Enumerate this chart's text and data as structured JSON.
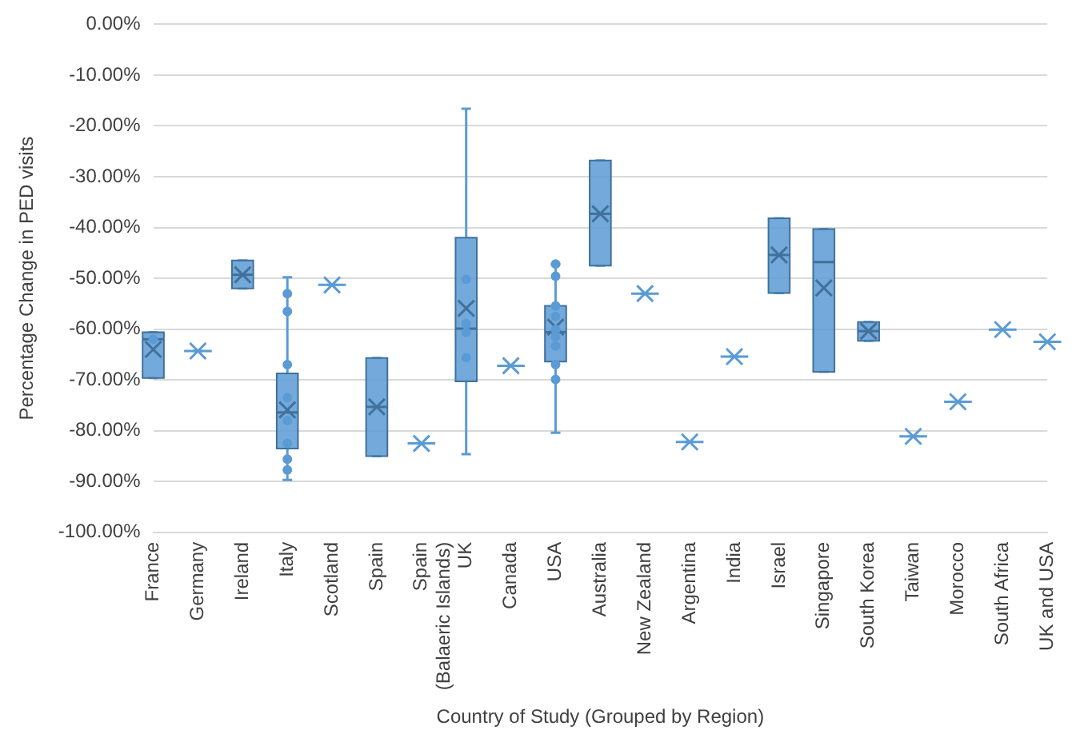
{
  "chart_data": {
    "type": "box",
    "xlabel": "Country of Study (Grouped by Region)",
    "ylabel": "Percentage Change in PED visits",
    "categories": [
      "France",
      "Germany",
      "Ireland",
      "Italy",
      "Scotland",
      "Spain",
      "Spain (Balaeric Islands)",
      "UK",
      "Canada",
      "USA",
      "Australia",
      "New Zealand",
      "Argentina",
      "India",
      "Israel",
      "Singapore",
      "South Korea",
      "Taiwan",
      "Morocco",
      "South Africa",
      "UK and USA"
    ],
    "ylim": [
      -100,
      0
    ],
    "yticks": [
      {
        "value": 0,
        "label": "0.00%"
      },
      {
        "value": -10,
        "label": "-10.00%"
      },
      {
        "value": -20,
        "label": "-20.00%"
      },
      {
        "value": -30,
        "label": "-30.00%"
      },
      {
        "value": -40,
        "label": "-40.00%"
      },
      {
        "value": -50,
        "label": "-50.00%"
      },
      {
        "value": -60,
        "label": "-60.00%"
      },
      {
        "value": -70,
        "label": "-70.00%"
      },
      {
        "value": -80,
        "label": "-80.00%"
      },
      {
        "value": -90,
        "label": "-90.00%"
      },
      {
        "value": -100,
        "label": "-100.00%"
      }
    ],
    "grid": "y",
    "legend": false,
    "series": [
      {
        "type": "box",
        "color": "#5b9bd5",
        "boxes": [
          {
            "low": -69.6,
            "q1": -69.6,
            "median": -62,
            "q3": -60.6,
            "high": -60.6,
            "mean": -64
          },
          {
            "low": -64.3,
            "q1": -64.3,
            "median": -64.3,
            "q3": -64.3,
            "high": -64.3,
            "mean": -64.3
          },
          {
            "low": -52,
            "q1": -52,
            "median": -49.3,
            "q3": -46.5,
            "high": -46.5,
            "mean": -49.3
          },
          {
            "low": -89.7,
            "q1": -83.5,
            "median": -76.4,
            "q3": -68.7,
            "high": -49.8,
            "mean": -75.9
          },
          {
            "low": -51.3,
            "q1": -51.3,
            "median": -51.3,
            "q3": -51.3,
            "high": -51.3,
            "mean": -51.3
          },
          {
            "low": -85,
            "q1": -85,
            "median": -75.3,
            "q3": -65.7,
            "high": -65.7,
            "mean": -75.3
          },
          {
            "low": -82.5,
            "q1": -82.5,
            "median": -82.5,
            "q3": -82.5,
            "high": -82.5,
            "mean": -82.5
          },
          {
            "low": -84.6,
            "q1": -70.3,
            "median": -59.9,
            "q3": -42,
            "high": -16.6,
            "mean": -55.9
          },
          {
            "low": -67.2,
            "q1": -67.2,
            "median": -67.2,
            "q3": -67.2,
            "high": -67.2,
            "mean": -67.2
          },
          {
            "low": -80.4,
            "q1": -66.4,
            "median": -60.6,
            "q3": -55.4,
            "high": -47.2,
            "mean": -59.6
          },
          {
            "low": -47.5,
            "q1": -47.5,
            "median": -37.3,
            "q3": -26.8,
            "high": -26.8,
            "mean": -37.3
          },
          {
            "low": -53,
            "q1": -53,
            "median": -53,
            "q3": -53,
            "high": -53,
            "mean": -53
          },
          {
            "low": -82.2,
            "q1": -82.2,
            "median": -82.2,
            "q3": -82.2,
            "high": -82.2,
            "mean": -82.2
          },
          {
            "low": -65.4,
            "q1": -65.4,
            "median": -65.4,
            "q3": -65.4,
            "high": -65.4,
            "mean": -65.4
          },
          {
            "low": -52.9,
            "q1": -52.9,
            "median": -45.4,
            "q3": -38.2,
            "high": -38.2,
            "mean": -45.4
          },
          {
            "low": -68.4,
            "q1": -68.4,
            "median": -46.8,
            "q3": -40.3,
            "high": -40.3,
            "mean": -51.9
          },
          {
            "low": -62.3,
            "q1": -62.3,
            "median": -60.4,
            "q3": -58.6,
            "high": -58.6,
            "mean": -60.4
          },
          {
            "low": -81.1,
            "q1": -81.1,
            "median": -81.1,
            "q3": -81.1,
            "high": -81.1,
            "mean": -81.1
          },
          {
            "low": -74.3,
            "q1": -74.3,
            "median": -74.3,
            "q3": -74.3,
            "high": -74.3,
            "mean": -74.3
          },
          {
            "low": -60.1,
            "q1": -60.1,
            "median": -60.1,
            "q3": -60.1,
            "high": -60.1,
            "mean": -60.1
          },
          {
            "low": -62.5,
            "q1": -62.5,
            "median": -62.5,
            "q3": -62.5,
            "high": -62.5,
            "mean": -62.5
          }
        ]
      },
      {
        "type": "scatter",
        "color": "#5b9bd5",
        "marker": "circle",
        "x": [
          "France",
          "Italy",
          "Italy",
          "Italy",
          "Italy",
          "Italy",
          "Italy",
          "Italy",
          "Italy",
          "UK",
          "UK",
          "UK",
          "UK",
          "USA",
          "USA",
          "USA",
          "USA",
          "USA",
          "USA",
          "USA",
          "USA",
          "USA"
        ],
        "values": [
          -62,
          -53,
          -56.5,
          -67,
          -73.5,
          -78,
          -82.5,
          -85.6,
          -87.7,
          -50.2,
          -58.9,
          -60.6,
          -65.6,
          -47.2,
          -49.6,
          -55.4,
          -57.5,
          -60.1,
          -61.5,
          -63.3,
          -67,
          -69.9
        ]
      }
    ]
  }
}
